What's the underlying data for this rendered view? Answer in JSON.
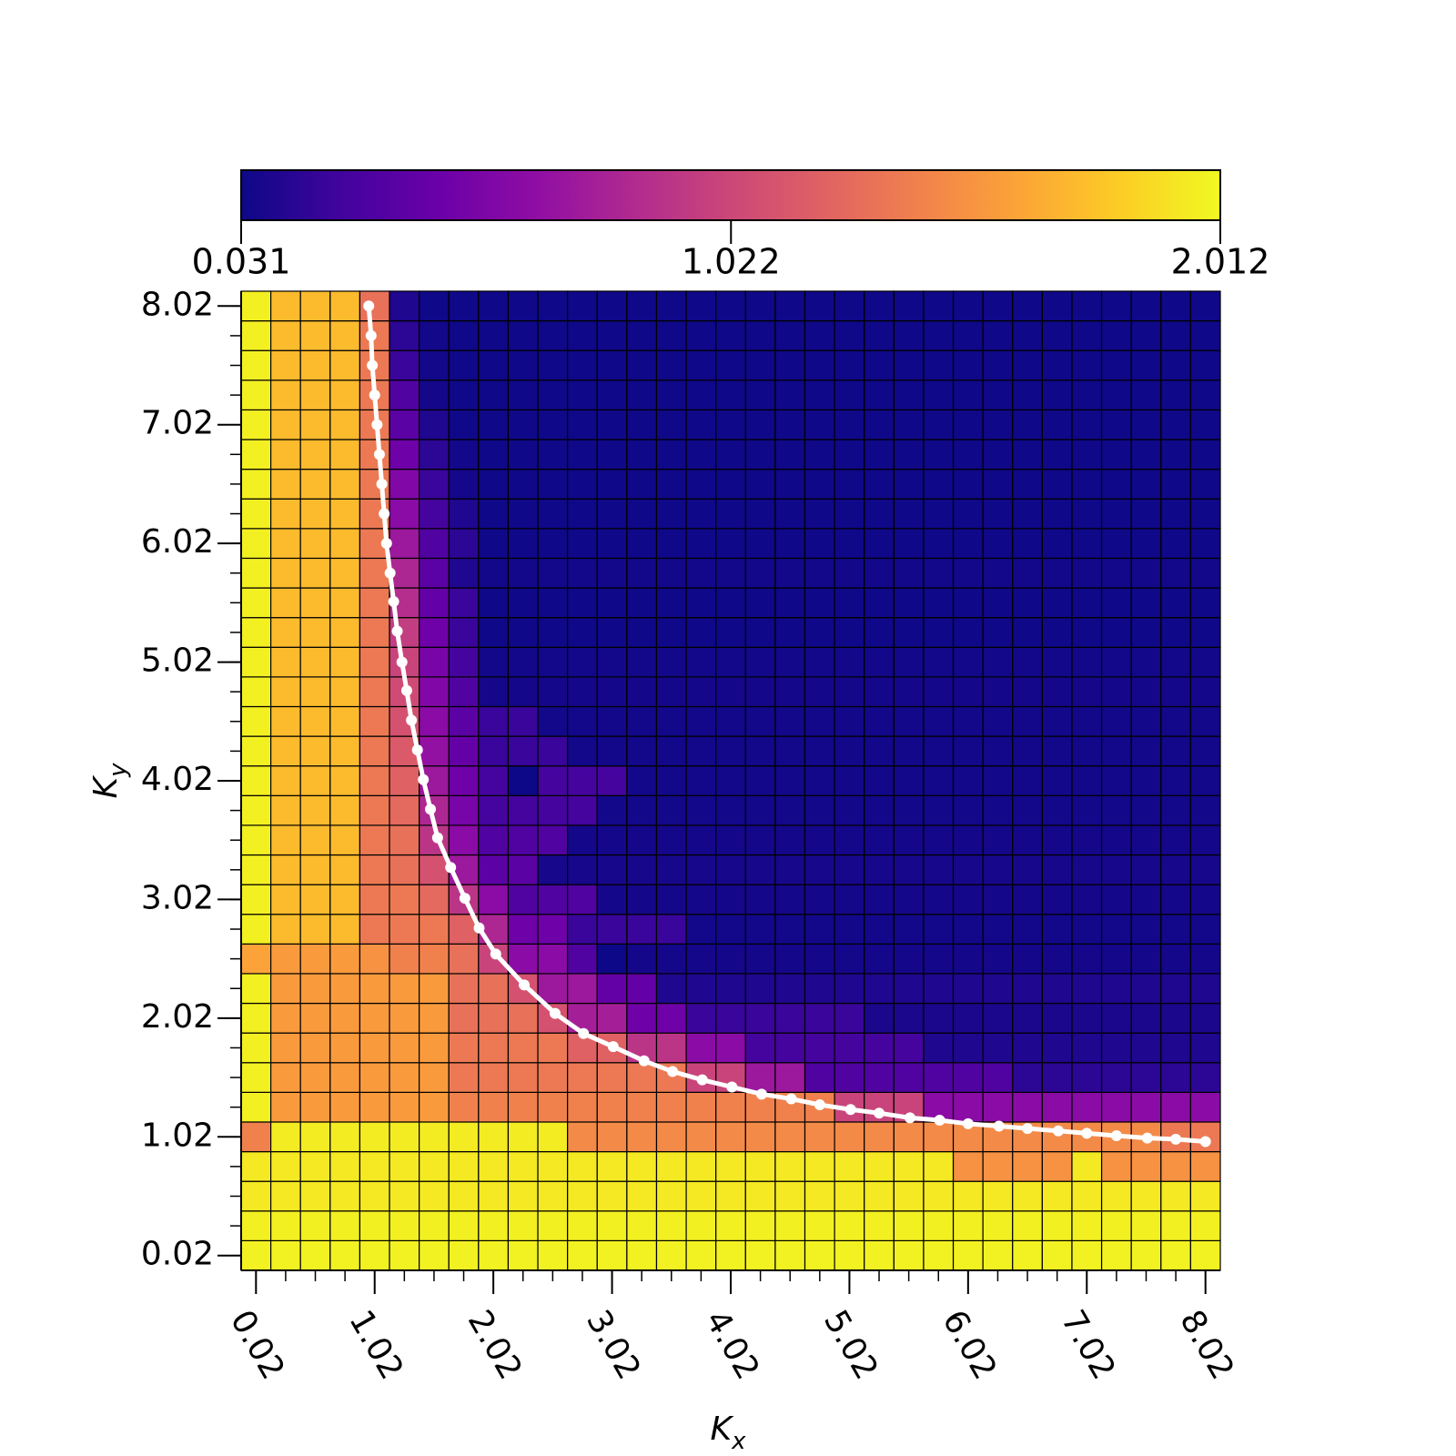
{
  "chart_data": {
    "type": "heatmap",
    "xlabel": "Kx",
    "ylabel": "Ky",
    "colormap": "plasma",
    "clim": [
      0.031,
      2.012
    ],
    "colorbar_ticks": [
      0.031,
      1.022,
      2.012
    ],
    "xlim": [
      -0.105,
      8.145
    ],
    "ylim": [
      -0.105,
      8.145
    ],
    "xticks": [
      0.02,
      1.02,
      2.02,
      3.02,
      4.02,
      5.02,
      6.02,
      7.02,
      8.02
    ],
    "yticks": [
      0.02,
      1.02,
      2.02,
      3.02,
      4.02,
      5.02,
      6.02,
      7.02,
      8.02
    ],
    "x": [
      0.02,
      0.27,
      0.52,
      0.77,
      1.02,
      1.27,
      1.52,
      1.77,
      2.02,
      2.27,
      2.52,
      2.77,
      3.02,
      3.27,
      3.52,
      3.77,
      4.02,
      4.27,
      4.52,
      4.77,
      5.02,
      5.27,
      5.52,
      5.77,
      6.02,
      6.27,
      6.52,
      6.77,
      7.02,
      7.27,
      7.52,
      7.77,
      8.02
    ],
    "y": [
      0.02,
      0.27,
      0.52,
      0.77,
      1.02,
      1.27,
      1.52,
      1.77,
      2.02,
      2.27,
      2.52,
      2.77,
      3.02,
      3.27,
      3.52,
      3.77,
      4.02,
      4.27,
      4.52,
      4.77,
      5.02,
      5.27,
      5.52,
      5.77,
      6.02,
      6.27,
      6.52,
      6.77,
      7.02,
      7.27,
      7.52,
      7.77,
      8.02
    ],
    "z": [
      [
        1.98,
        1.98,
        1.98,
        1.98,
        1.98,
        1.98,
        1.98,
        1.98,
        1.98,
        1.98,
        1.98,
        1.98,
        1.98,
        1.98,
        1.98,
        1.98,
        1.98,
        1.98,
        1.98,
        1.98,
        1.98,
        1.98,
        1.98,
        1.98,
        1.98,
        1.98,
        1.98,
        1.98,
        1.98,
        1.98,
        1.98,
        1.98,
        1.98
      ],
      [
        1.97,
        1.97,
        1.97,
        1.97,
        1.97,
        1.97,
        1.97,
        1.97,
        1.97,
        1.97,
        1.97,
        1.97,
        1.97,
        1.97,
        1.97,
        1.97,
        1.97,
        1.97,
        1.97,
        1.97,
        1.97,
        1.97,
        1.97,
        1.97,
        1.97,
        1.97,
        1.97,
        1.97,
        1.97,
        1.97,
        1.97,
        1.97,
        1.97
      ],
      [
        1.94,
        1.94,
        1.94,
        1.94,
        1.94,
        1.94,
        1.94,
        1.94,
        1.94,
        1.94,
        1.94,
        1.94,
        1.94,
        1.94,
        1.94,
        1.94,
        1.94,
        1.94,
        1.94,
        1.94,
        1.94,
        1.94,
        1.94,
        1.94,
        1.94,
        1.94,
        1.94,
        1.94,
        1.94,
        1.94,
        1.94,
        1.94,
        1.94
      ],
      [
        1.94,
        1.94,
        1.94,
        1.94,
        1.94,
        1.94,
        1.94,
        1.94,
        1.94,
        1.94,
        1.94,
        1.94,
        1.94,
        1.94,
        1.94,
        1.94,
        1.94,
        1.94,
        1.94,
        1.94,
        1.94,
        1.94,
        1.94,
        1.94,
        1.5,
        1.5,
        1.5,
        1.5,
        1.94,
        1.5,
        1.5,
        1.5,
        1.5
      ],
      [
        1.4,
        1.95,
        1.95,
        1.95,
        1.95,
        1.95,
        1.95,
        1.95,
        1.95,
        1.95,
        1.95,
        1.45,
        1.45,
        1.45,
        1.45,
        1.45,
        1.45,
        1.45,
        1.45,
        1.45,
        1.45,
        1.45,
        1.45,
        1.45,
        1.45,
        1.45,
        1.45,
        1.45,
        1.45,
        1.45,
        1.45,
        1.35,
        1.35
      ],
      [
        1.97,
        1.55,
        1.55,
        1.55,
        1.55,
        1.55,
        1.55,
        1.4,
        1.4,
        1.4,
        1.4,
        1.4,
        1.4,
        1.4,
        1.4,
        1.4,
        1.4,
        1.4,
        1.4,
        1.4,
        1.0,
        1.0,
        1.0,
        0.6,
        0.6,
        0.6,
        0.6,
        0.6,
        0.6,
        0.6,
        0.6,
        0.6,
        0.6
      ],
      [
        1.97,
        1.55,
        1.55,
        1.55,
        1.55,
        1.55,
        1.55,
        1.35,
        1.35,
        1.35,
        1.35,
        1.35,
        1.35,
        1.35,
        1.35,
        1.0,
        1.0,
        0.7,
        0.7,
        0.3,
        0.3,
        0.3,
        0.3,
        0.3,
        0.3,
        0.3,
        0.15,
        0.15,
        0.15,
        0.15,
        0.15,
        0.15,
        0.15
      ],
      [
        1.97,
        1.55,
        1.55,
        1.55,
        1.55,
        1.55,
        1.55,
        1.35,
        1.35,
        1.35,
        1.35,
        1.2,
        1.2,
        0.9,
        0.9,
        0.6,
        0.6,
        0.25,
        0.25,
        0.25,
        0.25,
        0.25,
        0.25,
        0.1,
        0.1,
        0.1,
        0.1,
        0.1,
        0.1,
        0.1,
        0.1,
        0.1,
        0.1
      ],
      [
        1.97,
        1.55,
        1.55,
        1.55,
        1.55,
        1.55,
        1.55,
        1.3,
        1.3,
        1.3,
        1.1,
        0.75,
        0.75,
        0.45,
        0.45,
        0.2,
        0.2,
        0.2,
        0.2,
        0.2,
        0.2,
        0.08,
        0.08,
        0.08,
        0.08,
        0.08,
        0.08,
        0.08,
        0.08,
        0.08,
        0.08,
        0.08,
        0.08
      ],
      [
        1.97,
        1.55,
        1.55,
        1.55,
        1.55,
        1.55,
        1.55,
        1.3,
        1.3,
        1.1,
        0.7,
        0.7,
        0.4,
        0.4,
        0.1,
        0.1,
        0.1,
        0.1,
        0.1,
        0.1,
        0.1,
        0.1,
        0.1,
        0.1,
        0.1,
        0.1,
        0.1,
        0.1,
        0.1,
        0.1,
        0.1,
        0.1,
        0.1
      ],
      [
        1.6,
        1.55,
        1.55,
        1.55,
        1.5,
        1.4,
        1.4,
        1.3,
        1.0,
        0.6,
        0.6,
        0.3,
        0.03,
        0.06,
        0.06,
        0.06,
        0.06,
        0.06,
        0.06,
        0.06,
        0.06,
        0.06,
        0.06,
        0.06,
        0.06,
        0.06,
        0.06,
        0.06,
        0.06,
        0.06,
        0.06,
        0.06,
        0.06
      ],
      [
        1.97,
        1.72,
        1.72,
        1.72,
        1.35,
        1.35,
        1.35,
        1.2,
        0.8,
        0.45,
        0.45,
        0.2,
        0.2,
        0.2,
        0.2,
        0.05,
        0.05,
        0.05,
        0.05,
        0.05,
        0.05,
        0.05,
        0.05,
        0.05,
        0.05,
        0.05,
        0.05,
        0.05,
        0.05,
        0.05,
        0.05,
        0.05,
        0.05
      ],
      [
        1.97,
        1.72,
        1.72,
        1.72,
        1.35,
        1.35,
        1.25,
        0.9,
        0.6,
        0.3,
        0.3,
        0.3,
        0.06,
        0.06,
        0.06,
        0.06,
        0.06,
        0.06,
        0.06,
        0.06,
        0.06,
        0.06,
        0.06,
        0.06,
        0.06,
        0.06,
        0.06,
        0.06,
        0.06,
        0.06,
        0.06,
        0.06,
        0.06
      ],
      [
        1.97,
        1.72,
        1.72,
        1.72,
        1.35,
        1.3,
        1.1,
        0.7,
        0.35,
        0.35,
        0.07,
        0.07,
        0.07,
        0.07,
        0.07,
        0.07,
        0.07,
        0.07,
        0.07,
        0.07,
        0.07,
        0.07,
        0.07,
        0.07,
        0.07,
        0.07,
        0.07,
        0.07,
        0.07,
        0.07,
        0.07,
        0.07,
        0.07
      ],
      [
        1.97,
        1.72,
        1.72,
        1.72,
        1.35,
        1.3,
        0.9,
        0.6,
        0.3,
        0.3,
        0.3,
        0.06,
        0.06,
        0.06,
        0.06,
        0.06,
        0.06,
        0.06,
        0.06,
        0.06,
        0.06,
        0.06,
        0.06,
        0.06,
        0.06,
        0.06,
        0.06,
        0.06,
        0.06,
        0.06,
        0.06,
        0.06,
        0.06
      ],
      [
        1.97,
        1.72,
        1.72,
        1.72,
        1.35,
        1.25,
        0.8,
        0.5,
        0.25,
        0.25,
        0.25,
        0.25,
        0.05,
        0.05,
        0.05,
        0.05,
        0.05,
        0.05,
        0.05,
        0.05,
        0.05,
        0.05,
        0.05,
        0.05,
        0.05,
        0.05,
        0.05,
        0.05,
        0.05,
        0.05,
        0.05,
        0.05,
        0.05
      ],
      [
        1.97,
        1.72,
        1.72,
        1.72,
        1.35,
        1.2,
        0.7,
        0.45,
        0.25,
        0.03,
        0.25,
        0.25,
        0.25,
        0.05,
        0.05,
        0.05,
        0.05,
        0.05,
        0.05,
        0.05,
        0.05,
        0.05,
        0.05,
        0.05,
        0.05,
        0.05,
        0.05,
        0.05,
        0.05,
        0.05,
        0.05,
        0.05,
        0.05
      ],
      [
        1.97,
        1.72,
        1.72,
        1.72,
        1.35,
        1.15,
        0.65,
        0.4,
        0.2,
        0.2,
        0.2,
        0.05,
        0.05,
        0.05,
        0.05,
        0.05,
        0.05,
        0.05,
        0.05,
        0.05,
        0.05,
        0.05,
        0.05,
        0.05,
        0.05,
        0.05,
        0.05,
        0.05,
        0.05,
        0.05,
        0.05,
        0.05,
        0.05
      ],
      [
        1.97,
        1.72,
        1.72,
        1.72,
        1.35,
        1.1,
        0.6,
        0.35,
        0.2,
        0.2,
        0.05,
        0.05,
        0.05,
        0.05,
        0.05,
        0.05,
        0.05,
        0.05,
        0.05,
        0.05,
        0.05,
        0.05,
        0.05,
        0.05,
        0.05,
        0.05,
        0.05,
        0.05,
        0.05,
        0.05,
        0.05,
        0.05,
        0.05
      ],
      [
        1.97,
        1.72,
        1.72,
        1.72,
        1.35,
        1.05,
        0.55,
        0.3,
        0.06,
        0.06,
        0.06,
        0.06,
        0.06,
        0.06,
        0.06,
        0.06,
        0.06,
        0.06,
        0.06,
        0.06,
        0.06,
        0.06,
        0.06,
        0.06,
        0.06,
        0.06,
        0.06,
        0.06,
        0.06,
        0.06,
        0.06,
        0.06,
        0.06
      ],
      [
        1.97,
        1.72,
        1.72,
        1.72,
        1.35,
        1.0,
        0.5,
        0.25,
        0.05,
        0.05,
        0.05,
        0.05,
        0.05,
        0.05,
        0.05,
        0.05,
        0.05,
        0.05,
        0.05,
        0.05,
        0.05,
        0.05,
        0.05,
        0.05,
        0.05,
        0.05,
        0.05,
        0.05,
        0.05,
        0.05,
        0.05,
        0.05,
        0.05
      ],
      [
        1.97,
        1.72,
        1.72,
        1.72,
        1.35,
        0.95,
        0.45,
        0.2,
        0.04,
        0.04,
        0.04,
        0.04,
        0.04,
        0.04,
        0.04,
        0.04,
        0.04,
        0.04,
        0.04,
        0.04,
        0.04,
        0.04,
        0.04,
        0.04,
        0.04,
        0.04,
        0.04,
        0.04,
        0.04,
        0.04,
        0.04,
        0.04,
        0.04
      ],
      [
        1.97,
        1.72,
        1.72,
        1.72,
        1.35,
        0.85,
        0.4,
        0.2,
        0.04,
        0.04,
        0.04,
        0.04,
        0.04,
        0.04,
        0.04,
        0.04,
        0.04,
        0.04,
        0.04,
        0.04,
        0.04,
        0.04,
        0.04,
        0.04,
        0.04,
        0.04,
        0.04,
        0.04,
        0.04,
        0.04,
        0.04,
        0.04,
        0.04
      ],
      [
        1.97,
        1.72,
        1.72,
        1.72,
        1.35,
        0.8,
        0.35,
        0.1,
        0.05,
        0.05,
        0.05,
        0.05,
        0.05,
        0.05,
        0.05,
        0.05,
        0.05,
        0.05,
        0.05,
        0.05,
        0.05,
        0.05,
        0.05,
        0.05,
        0.05,
        0.05,
        0.05,
        0.05,
        0.05,
        0.05,
        0.05,
        0.05,
        0.05
      ],
      [
        1.97,
        1.72,
        1.72,
        1.72,
        1.35,
        0.7,
        0.3,
        0.15,
        0.04,
        0.04,
        0.04,
        0.04,
        0.04,
        0.04,
        0.04,
        0.04,
        0.04,
        0.04,
        0.04,
        0.04,
        0.04,
        0.04,
        0.04,
        0.04,
        0.04,
        0.04,
        0.04,
        0.04,
        0.04,
        0.04,
        0.04,
        0.04,
        0.04
      ],
      [
        1.97,
        1.72,
        1.72,
        1.72,
        1.35,
        0.6,
        0.25,
        0.1,
        0.04,
        0.04,
        0.04,
        0.04,
        0.04,
        0.04,
        0.04,
        0.04,
        0.04,
        0.04,
        0.04,
        0.04,
        0.04,
        0.04,
        0.04,
        0.04,
        0.04,
        0.04,
        0.04,
        0.04,
        0.04,
        0.04,
        0.04,
        0.04,
        0.04
      ],
      [
        1.97,
        1.72,
        1.72,
        1.72,
        1.35,
        0.55,
        0.2,
        0.06,
        0.04,
        0.04,
        0.04,
        0.04,
        0.04,
        0.04,
        0.04,
        0.04,
        0.04,
        0.04,
        0.04,
        0.04,
        0.04,
        0.04,
        0.04,
        0.04,
        0.04,
        0.04,
        0.04,
        0.04,
        0.04,
        0.04,
        0.04,
        0.04,
        0.04
      ],
      [
        1.97,
        1.72,
        1.72,
        1.72,
        1.35,
        0.45,
        0.15,
        0.05,
        0.04,
        0.04,
        0.04,
        0.04,
        0.04,
        0.04,
        0.04,
        0.04,
        0.04,
        0.04,
        0.04,
        0.04,
        0.04,
        0.04,
        0.04,
        0.04,
        0.04,
        0.04,
        0.04,
        0.04,
        0.04,
        0.04,
        0.04,
        0.04,
        0.04
      ],
      [
        1.97,
        1.72,
        1.72,
        1.72,
        1.35,
        0.35,
        0.1,
        0.04,
        0.04,
        0.04,
        0.04,
        0.04,
        0.04,
        0.04,
        0.04,
        0.04,
        0.04,
        0.04,
        0.04,
        0.04,
        0.04,
        0.04,
        0.04,
        0.04,
        0.04,
        0.04,
        0.04,
        0.04,
        0.04,
        0.04,
        0.04,
        0.04,
        0.04
      ],
      [
        1.97,
        1.72,
        1.72,
        1.72,
        1.35,
        0.3,
        0.06,
        0.04,
        0.04,
        0.04,
        0.04,
        0.04,
        0.04,
        0.04,
        0.04,
        0.04,
        0.04,
        0.04,
        0.04,
        0.04,
        0.04,
        0.04,
        0.04,
        0.04,
        0.04,
        0.04,
        0.04,
        0.04,
        0.04,
        0.04,
        0.04,
        0.04,
        0.04
      ],
      [
        1.97,
        1.72,
        1.72,
        1.72,
        1.35,
        0.2,
        0.05,
        0.04,
        0.04,
        0.04,
        0.04,
        0.04,
        0.04,
        0.04,
        0.04,
        0.04,
        0.04,
        0.04,
        0.04,
        0.04,
        0.04,
        0.04,
        0.04,
        0.04,
        0.04,
        0.04,
        0.04,
        0.04,
        0.04,
        0.04,
        0.04,
        0.04,
        0.04
      ],
      [
        1.97,
        1.72,
        1.72,
        1.72,
        1.35,
        0.15,
        0.05,
        0.04,
        0.04,
        0.04,
        0.04,
        0.04,
        0.04,
        0.04,
        0.04,
        0.04,
        0.04,
        0.04,
        0.04,
        0.04,
        0.04,
        0.04,
        0.04,
        0.04,
        0.04,
        0.04,
        0.04,
        0.04,
        0.04,
        0.04,
        0.04,
        0.04,
        0.04
      ],
      [
        1.97,
        1.72,
        1.72,
        1.72,
        1.3,
        0.1,
        0.04,
        0.04,
        0.04,
        0.04,
        0.04,
        0.04,
        0.04,
        0.04,
        0.04,
        0.04,
        0.04,
        0.04,
        0.04,
        0.04,
        0.04,
        0.04,
        0.04,
        0.04,
        0.04,
        0.04,
        0.04,
        0.04,
        0.04,
        0.04,
        0.04,
        0.04,
        0.04
      ]
    ],
    "curve": {
      "color": "#ffffff",
      "x": [
        0.97,
        0.99,
        1.0,
        1.02,
        1.04,
        1.06,
        1.08,
        1.1,
        1.12,
        1.15,
        1.18,
        1.21,
        1.25,
        1.29,
        1.33,
        1.38,
        1.43,
        1.49,
        1.55,
        1.66,
        1.78,
        1.9,
        2.04,
        2.28,
        2.54,
        2.78,
        3.03,
        3.29,
        3.53,
        3.78,
        4.03,
        4.28,
        4.53,
        4.77,
        5.03,
        5.27,
        5.53,
        5.78,
        6.02,
        6.28,
        6.52,
        6.78,
        7.02,
        7.27,
        7.53,
        7.77,
        8.02
      ],
      "y": [
        8.02,
        7.77,
        7.52,
        7.27,
        7.02,
        6.77,
        6.52,
        6.27,
        6.02,
        5.77,
        5.53,
        5.28,
        5.02,
        4.78,
        4.53,
        4.28,
        4.03,
        3.78,
        3.54,
        3.29,
        3.03,
        2.78,
        2.56,
        2.3,
        2.06,
        1.89,
        1.78,
        1.66,
        1.57,
        1.5,
        1.44,
        1.38,
        1.34,
        1.29,
        1.25,
        1.22,
        1.18,
        1.16,
        1.13,
        1.11,
        1.09,
        1.07,
        1.05,
        1.03,
        1.01,
        1.0,
        0.98
      ]
    }
  }
}
